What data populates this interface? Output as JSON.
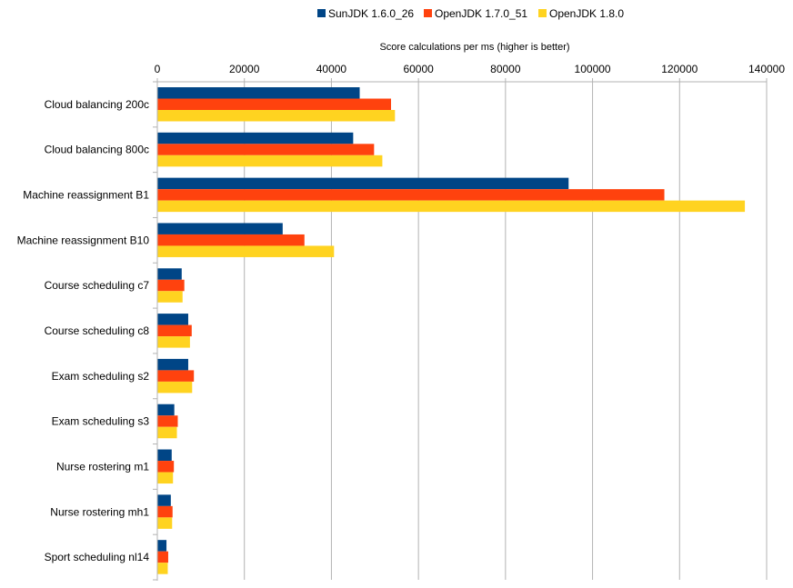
{
  "chart_data": {
    "type": "bar",
    "orientation": "horizontal",
    "title": "",
    "xlabel": "Score calculations per ms (higher is better)",
    "ylabel": "",
    "xlim": [
      0,
      140000
    ],
    "x_ticks": [
      0,
      20000,
      40000,
      60000,
      80000,
      100000,
      120000,
      140000
    ],
    "x_axis_position": "top",
    "grid": true,
    "legend_position": "top",
    "categories": [
      "Cloud balancing 200c",
      "Cloud balancing 800c",
      "Machine reassignment B1",
      "Machine reassignment B10",
      "Course scheduling c7",
      "Course scheduling c8",
      "Exam scheduling s2",
      "Exam scheduling s3",
      "Nurse rostering m1",
      "Nurse rostering mh1",
      "Sport scheduling nl14"
    ],
    "series": [
      {
        "name": "SunJDK 1.6.0_26",
        "color": "#004586",
        "values": [
          46500,
          45000,
          94500,
          28800,
          5600,
          7100,
          7100,
          3900,
          3300,
          3100,
          2100
        ]
      },
      {
        "name": "OpenJDK 1.7.0_51",
        "color": "#ff420e",
        "values": [
          53700,
          49800,
          116500,
          33800,
          6200,
          7900,
          8400,
          4700,
          3800,
          3500,
          2500
        ]
      },
      {
        "name": "OpenJDK 1.8.0",
        "color": "#ffd320",
        "values": [
          54600,
          51700,
          135000,
          40600,
          5800,
          7500,
          8000,
          4500,
          3600,
          3400,
          2400
        ]
      }
    ]
  }
}
